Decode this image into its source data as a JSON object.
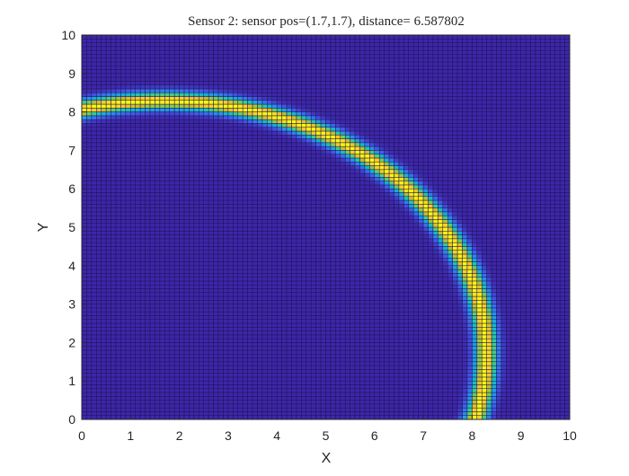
{
  "chart_data": {
    "type": "heatmap",
    "title": "Sensor 2: sensor pos=(1.7,1.7), distance= 6.587802",
    "xlabel": "X",
    "ylabel": "Y",
    "xlim": [
      0,
      10
    ],
    "ylim": [
      0,
      10
    ],
    "xticks": [
      "0",
      "1",
      "2",
      "3",
      "4",
      "5",
      "6",
      "7",
      "8",
      "9",
      "10"
    ],
    "yticks": [
      "0",
      "1",
      "2",
      "3",
      "4",
      "5",
      "6",
      "7",
      "8",
      "9",
      "10"
    ],
    "colormap": "parula",
    "grid_step": 0.1,
    "sensor_position": [
      1.7,
      1.7
    ],
    "distance": 6.587802,
    "ring_width": 0.15,
    "colors": {
      "background": "#3e26a8",
      "cell_edge": "#1c1458",
      "peak": "#f9fb0e",
      "text": "#262626"
    }
  }
}
